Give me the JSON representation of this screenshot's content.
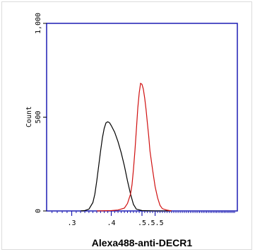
{
  "chart_data": {
    "type": "line",
    "title": "",
    "xlabel": "Alexa488-anti-DECR1",
    "ylabel": "Count",
    "scale_x": "log",
    "xlim": [
      0.25,
      1.0
    ],
    "ylim": [
      0,
      1000
    ],
    "grid": false,
    "x_ticks": [
      {
        "value": 0.3,
        "label": ".3"
      },
      {
        "value": 0.4,
        "label": ".4"
      },
      {
        "value": 0.5,
        "label": ".5"
      },
      {
        "value": 0.55,
        "label": ".5.5"
      }
    ],
    "y_ticks": [
      {
        "value": 0,
        "label": "0"
      },
      {
        "value": 500,
        "label": "500"
      },
      {
        "value": 1000,
        "label": "1,000"
      }
    ],
    "series": [
      {
        "color": "#000000",
        "points": [
          [
            0.32,
            0
          ],
          [
            0.33,
            2
          ],
          [
            0.34,
            10
          ],
          [
            0.35,
            45
          ],
          [
            0.355,
            90
          ],
          [
            0.36,
            160
          ],
          [
            0.365,
            240
          ],
          [
            0.37,
            320
          ],
          [
            0.375,
            390
          ],
          [
            0.38,
            440
          ],
          [
            0.385,
            470
          ],
          [
            0.39,
            475
          ],
          [
            0.395,
            470
          ],
          [
            0.4,
            455
          ],
          [
            0.41,
            420
          ],
          [
            0.42,
            370
          ],
          [
            0.43,
            310
          ],
          [
            0.44,
            240
          ],
          [
            0.45,
            160
          ],
          [
            0.46,
            90
          ],
          [
            0.47,
            35
          ],
          [
            0.48,
            10
          ],
          [
            0.5,
            2
          ],
          [
            0.55,
            0
          ],
          [
            0.62,
            0
          ]
        ]
      },
      {
        "color": "#d01010",
        "points": [
          [
            0.36,
            0
          ],
          [
            0.4,
            2
          ],
          [
            0.42,
            5
          ],
          [
            0.44,
            15
          ],
          [
            0.45,
            40
          ],
          [
            0.46,
            90
          ],
          [
            0.465,
            140
          ],
          [
            0.47,
            220
          ],
          [
            0.475,
            320
          ],
          [
            0.48,
            430
          ],
          [
            0.485,
            550
          ],
          [
            0.49,
            630
          ],
          [
            0.495,
            680
          ],
          [
            0.5,
            675
          ],
          [
            0.505,
            650
          ],
          [
            0.51,
            600
          ],
          [
            0.515,
            540
          ],
          [
            0.52,
            470
          ],
          [
            0.525,
            400
          ],
          [
            0.53,
            320
          ],
          [
            0.54,
            220
          ],
          [
            0.55,
            130
          ],
          [
            0.56,
            70
          ],
          [
            0.57,
            30
          ],
          [
            0.58,
            12
          ],
          [
            0.6,
            4
          ],
          [
            0.62,
            0
          ]
        ]
      }
    ]
  }
}
